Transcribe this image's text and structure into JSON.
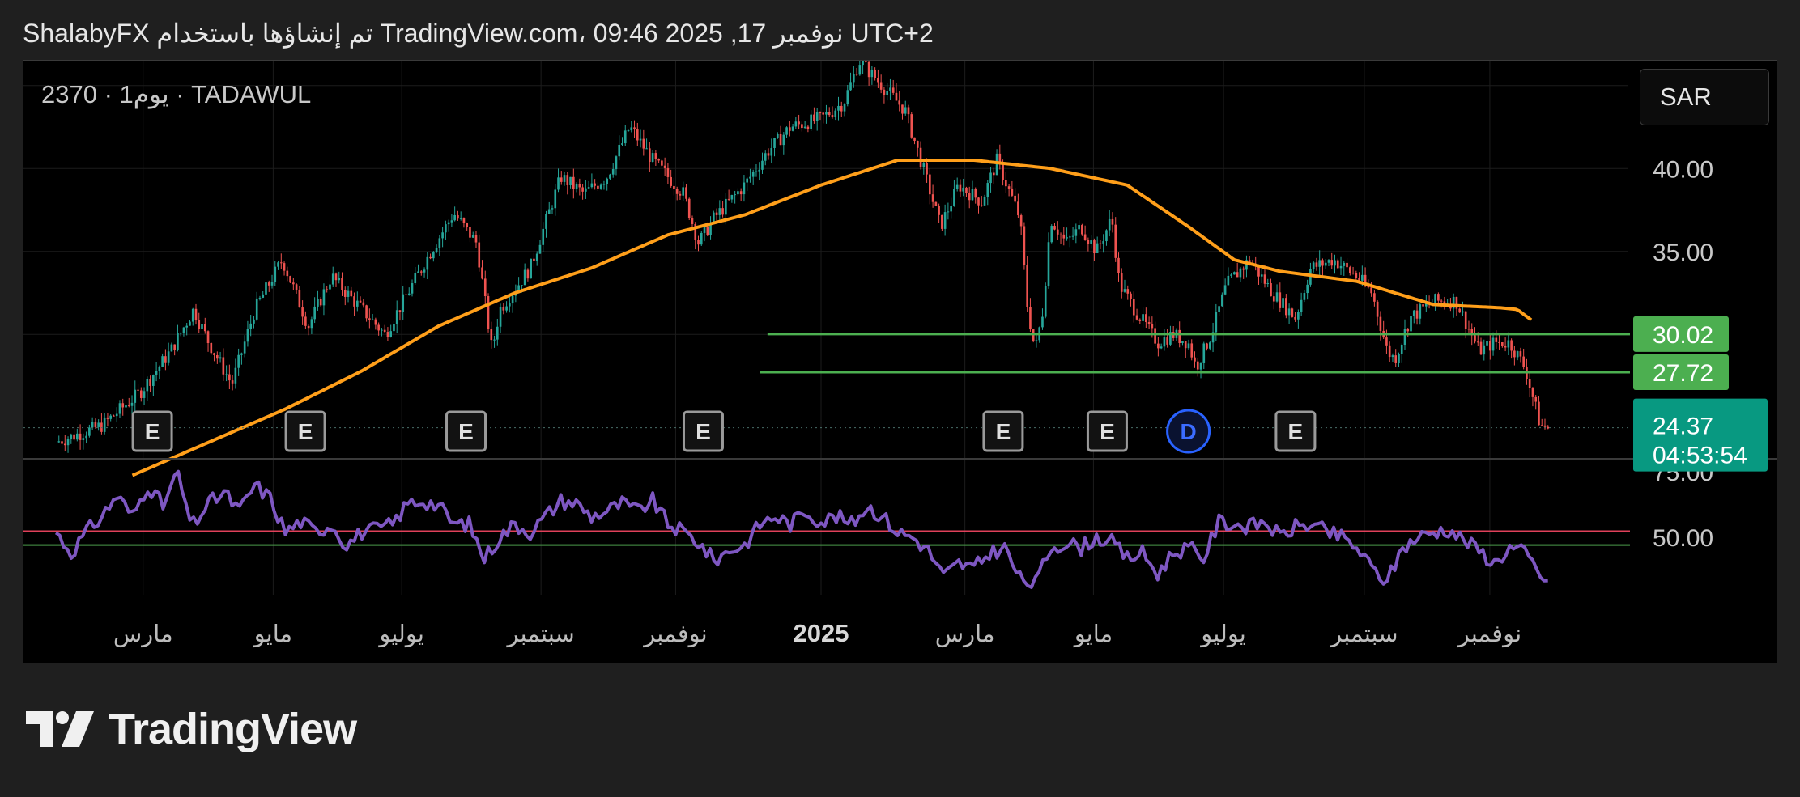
{
  "header": {
    "text": "UTC+2 نوفمبر 17, 2025 09:46 ،TradingView.com تم إنشاؤها باستخدام ShalabyFX"
  },
  "symbol_info": "2370 · 1يوم · TADAWUL",
  "currency_button": "SAR",
  "footer": {
    "brand": "TradingView"
  },
  "colors": {
    "up": "#26a69a",
    "down": "#ef5350",
    "ma": "#ff9f1a",
    "rsi": "#7e57c2",
    "level": "#4caf50",
    "rsi_upper": "#e0415a",
    "rsi_lower": "#4a9a4a",
    "last_price_bg": "#089981",
    "level_label_bg": "#4caf50",
    "dividend": "#2962ff"
  },
  "chart_data": {
    "type": "candlestick",
    "symbol": "2370",
    "exchange": "TADAWUL",
    "interval": "1يوم",
    "currency": "SAR",
    "price_axis": {
      "ticks": [
        "40.00",
        "35.00"
      ],
      "ylim": [
        22.5,
        46.5
      ]
    },
    "rsi_axis": {
      "ticks": [
        "75.00",
        "50.00"
      ],
      "ylim": [
        28,
        80
      ]
    },
    "time_labels": [
      {
        "label": "مارس",
        "t": 0.057,
        "bold": false
      },
      {
        "label": "مايو",
        "t": 0.142,
        "bold": false
      },
      {
        "label": "يوليو",
        "t": 0.226,
        "bold": false
      },
      {
        "label": "سبتمبر",
        "t": 0.317,
        "bold": false
      },
      {
        "label": "نوفمبر",
        "t": 0.405,
        "bold": false
      },
      {
        "label": "2025",
        "t": 0.5,
        "bold": true
      },
      {
        "label": "مارس",
        "t": 0.594,
        "bold": false
      },
      {
        "label": "مايو",
        "t": 0.678,
        "bold": false
      },
      {
        "label": "يوليو",
        "t": 0.763,
        "bold": false
      },
      {
        "label": "سبتمبر",
        "t": 0.855,
        "bold": false
      },
      {
        "label": "نوفمبر",
        "t": 0.937,
        "bold": false
      }
    ],
    "price_anchors": [
      [
        0.0,
        23.5
      ],
      [
        0.03,
        24.5
      ],
      [
        0.055,
        26.5
      ],
      [
        0.075,
        29
      ],
      [
        0.09,
        31.5
      ],
      [
        0.1,
        29.5
      ],
      [
        0.115,
        27
      ],
      [
        0.13,
        31.5
      ],
      [
        0.148,
        34.5
      ],
      [
        0.165,
        30.5
      ],
      [
        0.18,
        33.5
      ],
      [
        0.2,
        31.5
      ],
      [
        0.215,
        30
      ],
      [
        0.23,
        32.5
      ],
      [
        0.245,
        35
      ],
      [
        0.26,
        37.3
      ],
      [
        0.275,
        35.5
      ],
      [
        0.285,
        29
      ],
      [
        0.29,
        31.5
      ],
      [
        0.31,
        34
      ],
      [
        0.33,
        39.5
      ],
      [
        0.345,
        38.5
      ],
      [
        0.36,
        39.5
      ],
      [
        0.375,
        42.5
      ],
      [
        0.39,
        40.5
      ],
      [
        0.41,
        38.5
      ],
      [
        0.42,
        35.5
      ],
      [
        0.43,
        37
      ],
      [
        0.45,
        39
      ],
      [
        0.465,
        41
      ],
      [
        0.48,
        42.5
      ],
      [
        0.5,
        43
      ],
      [
        0.515,
        44
      ],
      [
        0.525,
        46.5
      ],
      [
        0.54,
        45
      ],
      [
        0.555,
        43.5
      ],
      [
        0.57,
        39
      ],
      [
        0.578,
        36.5
      ],
      [
        0.59,
        39
      ],
      [
        0.605,
        38
      ],
      [
        0.615,
        40.5
      ],
      [
        0.63,
        37
      ],
      [
        0.635,
        31.5
      ],
      [
        0.64,
        29
      ],
      [
        0.645,
        31.5
      ],
      [
        0.65,
        37
      ],
      [
        0.66,
        35.5
      ],
      [
        0.67,
        36.5
      ],
      [
        0.68,
        35
      ],
      [
        0.69,
        37
      ],
      [
        0.695,
        33
      ],
      [
        0.705,
        31.5
      ],
      [
        0.72,
        29.5
      ],
      [
        0.73,
        30
      ],
      [
        0.74,
        29.5
      ],
      [
        0.745,
        28
      ],
      [
        0.755,
        30
      ],
      [
        0.765,
        33
      ],
      [
        0.78,
        34.5
      ],
      [
        0.795,
        32.5
      ],
      [
        0.81,
        31
      ],
      [
        0.82,
        34
      ],
      [
        0.835,
        34.5
      ],
      [
        0.85,
        33.5
      ],
      [
        0.86,
        32.5
      ],
      [
        0.87,
        29
      ],
      [
        0.875,
        28.5
      ],
      [
        0.885,
        31
      ],
      [
        0.9,
        32
      ],
      [
        0.915,
        32
      ],
      [
        0.93,
        29
      ],
      [
        0.94,
        29.5
      ],
      [
        0.95,
        29.5
      ],
      [
        0.96,
        28
      ],
      [
        0.97,
        24.5
      ],
      [
        0.975,
        24.37
      ]
    ],
    "ma_anchors": [
      [
        0.05,
        21.5
      ],
      [
        0.1,
        23.5
      ],
      [
        0.15,
        25.5
      ],
      [
        0.2,
        27.8
      ],
      [
        0.25,
        30.5
      ],
      [
        0.3,
        32.5
      ],
      [
        0.35,
        34
      ],
      [
        0.4,
        36
      ],
      [
        0.45,
        37.2
      ],
      [
        0.5,
        39
      ],
      [
        0.55,
        40.5
      ],
      [
        0.6,
        40.5
      ],
      [
        0.65,
        40
      ],
      [
        0.7,
        39
      ],
      [
        0.74,
        36.5
      ],
      [
        0.77,
        34.5
      ],
      [
        0.8,
        33.8
      ],
      [
        0.85,
        33.2
      ],
      [
        0.9,
        31.8
      ],
      [
        0.945,
        31.6
      ],
      [
        0.955,
        31.5
      ],
      [
        0.965,
        30.8
      ]
    ],
    "horizontal_levels": [
      {
        "value": 30.02,
        "label": "30.02",
        "start_t": 0.465
      },
      {
        "value": 27.72,
        "label": "27.72",
        "start_t": 0.46
      }
    ],
    "last_price": {
      "value": 24.37,
      "label": "24.37",
      "countdown": "04:53:54"
    },
    "events": [
      {
        "type": "E",
        "t": 0.063
      },
      {
        "type": "E",
        "t": 0.163
      },
      {
        "type": "E",
        "t": 0.268
      },
      {
        "type": "E",
        "t": 0.423
      },
      {
        "type": "E",
        "t": 0.619
      },
      {
        "type": "E",
        "t": 0.687
      },
      {
        "type": "D",
        "t": 0.74
      },
      {
        "type": "E",
        "t": 0.81
      }
    ],
    "rsi": {
      "upper_level": 52.3,
      "lower_level": 47,
      "anchors": [
        [
          0.0,
          52
        ],
        [
          0.01,
          44
        ],
        [
          0.02,
          52
        ],
        [
          0.03,
          58
        ],
        [
          0.04,
          66
        ],
        [
          0.05,
          58
        ],
        [
          0.06,
          70
        ],
        [
          0.07,
          62
        ],
        [
          0.08,
          75
        ],
        [
          0.085,
          60
        ],
        [
          0.09,
          55
        ],
        [
          0.1,
          63
        ],
        [
          0.11,
          67
        ],
        [
          0.12,
          60
        ],
        [
          0.13,
          70
        ],
        [
          0.14,
          65
        ],
        [
          0.15,
          52
        ],
        [
          0.16,
          56
        ],
        [
          0.17,
          52
        ],
        [
          0.18,
          55
        ],
        [
          0.19,
          47
        ],
        [
          0.2,
          52
        ],
        [
          0.21,
          53
        ],
        [
          0.22,
          55
        ],
        [
          0.23,
          63
        ],
        [
          0.24,
          64
        ],
        [
          0.25,
          62
        ],
        [
          0.26,
          55
        ],
        [
          0.27,
          55
        ],
        [
          0.28,
          42
        ],
        [
          0.29,
          50
        ],
        [
          0.3,
          55
        ],
        [
          0.31,
          52
        ],
        [
          0.32,
          58
        ],
        [
          0.33,
          64
        ],
        [
          0.34,
          63
        ],
        [
          0.35,
          58
        ],
        [
          0.36,
          60
        ],
        [
          0.37,
          63
        ],
        [
          0.38,
          60
        ],
        [
          0.39,
          64
        ],
        [
          0.4,
          55
        ],
        [
          0.41,
          52
        ],
        [
          0.42,
          48
        ],
        [
          0.43,
          41
        ],
        [
          0.44,
          45
        ],
        [
          0.45,
          47
        ],
        [
          0.46,
          55
        ],
        [
          0.47,
          58
        ],
        [
          0.48,
          55
        ],
        [
          0.49,
          60
        ],
        [
          0.5,
          56
        ],
        [
          0.51,
          58
        ],
        [
          0.52,
          55
        ],
        [
          0.53,
          62
        ],
        [
          0.54,
          58
        ],
        [
          0.55,
          52
        ],
        [
          0.56,
          50
        ],
        [
          0.57,
          45
        ],
        [
          0.58,
          35
        ],
        [
          0.59,
          40
        ],
        [
          0.6,
          38
        ],
        [
          0.61,
          44
        ],
        [
          0.62,
          46
        ],
        [
          0.63,
          34
        ],
        [
          0.64,
          32
        ],
        [
          0.65,
          46
        ],
        [
          0.66,
          48
        ],
        [
          0.67,
          46
        ],
        [
          0.68,
          50
        ],
        [
          0.69,
          48
        ],
        [
          0.7,
          42
        ],
        [
          0.71,
          44
        ],
        [
          0.72,
          36
        ],
        [
          0.73,
          44
        ],
        [
          0.74,
          46
        ],
        [
          0.75,
          42
        ],
        [
          0.76,
          56
        ],
        [
          0.77,
          55
        ],
        [
          0.78,
          54
        ],
        [
          0.79,
          56
        ],
        [
          0.8,
          50
        ],
        [
          0.81,
          54
        ],
        [
          0.82,
          55
        ],
        [
          0.83,
          52
        ],
        [
          0.84,
          50
        ],
        [
          0.85,
          46
        ],
        [
          0.86,
          38
        ],
        [
          0.87,
          33
        ],
        [
          0.88,
          46
        ],
        [
          0.89,
          50
        ],
        [
          0.9,
          52
        ],
        [
          0.91,
          53
        ],
        [
          0.92,
          49
        ],
        [
          0.93,
          45
        ],
        [
          0.94,
          40
        ],
        [
          0.95,
          46
        ],
        [
          0.96,
          44
        ],
        [
          0.97,
          36
        ],
        [
          0.975,
          31
        ]
      ]
    }
  }
}
